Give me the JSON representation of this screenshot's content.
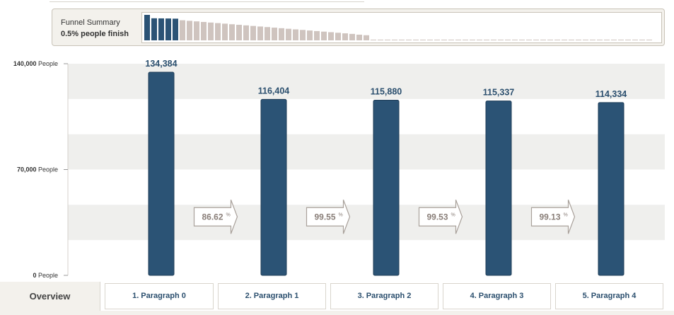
{
  "summary": {
    "title": "Funnel Summary",
    "subtitle": "0.5% people finish",
    "mini_steps_highlight": 5,
    "mini_values": [
      134384,
      116404,
      115880,
      115337,
      114334,
      106000,
      103000,
      100000,
      97000,
      94000,
      91000,
      88000,
      85000,
      82000,
      79000,
      76000,
      73000,
      70000,
      67000,
      64000,
      61000,
      58000,
      55000,
      52000,
      49000,
      46000,
      43000,
      40000,
      37000,
      34000,
      30000,
      27000,
      700,
      700,
      700,
      700,
      700,
      700,
      700,
      700,
      700,
      700,
      700,
      700,
      700,
      700,
      700,
      700,
      700,
      700,
      700,
      700,
      700,
      700,
      700,
      700,
      700,
      700,
      700,
      700,
      700,
      700,
      700,
      700,
      700,
      700,
      700,
      700,
      700,
      700,
      700,
      700
    ]
  },
  "chart_data": {
    "type": "bar",
    "categories": [
      "1. Paragraph 0",
      "2. Paragraph 1",
      "3. Paragraph 2",
      "4. Paragraph 3",
      "5. Paragraph 4"
    ],
    "values": [
      134384,
      116404,
      115880,
      115337,
      114334
    ],
    "value_labels": [
      "134,384",
      "116,404",
      "115,880",
      "115,337",
      "114,334"
    ],
    "conversion_labels": [
      "86.62",
      "99.55",
      "99.53",
      "99.13"
    ],
    "conversion_unit": "%",
    "yticks": [
      {
        "value": 140000,
        "num": "140,000",
        "unit": "People"
      },
      {
        "value": 70000,
        "num": "70,000",
        "unit": "People"
      },
      {
        "value": 0,
        "num": "0",
        "unit": "People"
      }
    ],
    "ylim": [
      0,
      140000
    ],
    "bar_color": "#2b5375",
    "band_color": "#efefed"
  },
  "tabs": {
    "overview": "Overview",
    "steps": [
      "1. Paragraph 0",
      "2. Paragraph 1",
      "3. Paragraph 2",
      "4. Paragraph 3",
      "5. Paragraph 4"
    ]
  }
}
